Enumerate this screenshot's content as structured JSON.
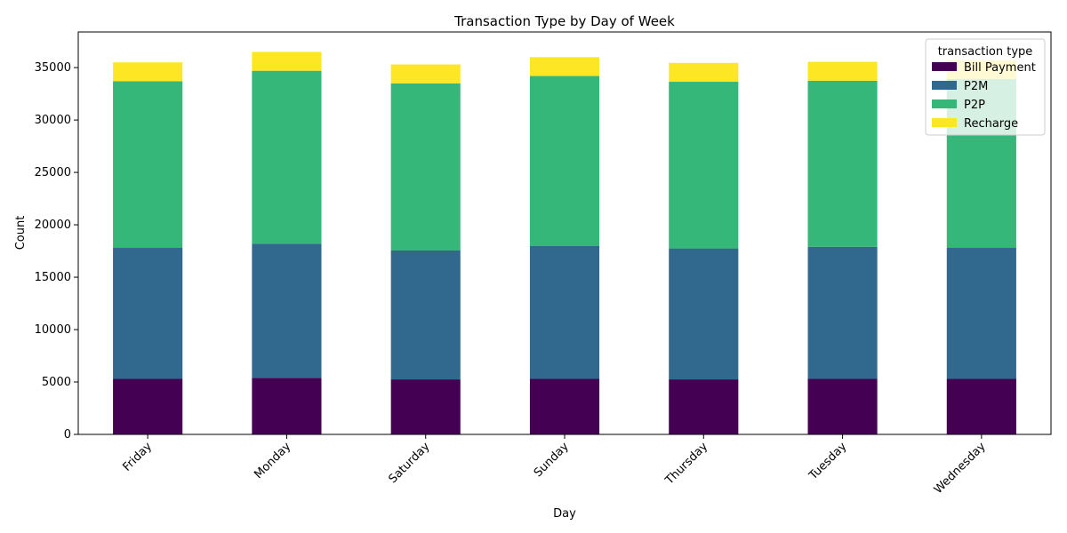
{
  "chart_data": {
    "type": "bar",
    "stacked": true,
    "title": "Transaction Type by Day of Week",
    "xlabel": "Day",
    "ylabel": "Count",
    "ylim": [
      0,
      38400
    ],
    "yticks": [
      0,
      5000,
      10000,
      15000,
      20000,
      25000,
      30000,
      35000
    ],
    "categories": [
      "Friday",
      "Monday",
      "Saturday",
      "Sunday",
      "Thursday",
      "Tuesday",
      "Wednesday"
    ],
    "series": [
      {
        "name": "Bill Payment",
        "color": "#440154",
        "values": [
          5300,
          5400,
          5250,
          5300,
          5250,
          5300,
          5300
        ]
      },
      {
        "name": "P2M",
        "color": "#31688e",
        "values": [
          12500,
          12800,
          12300,
          12700,
          12500,
          12600,
          12500
        ]
      },
      {
        "name": "P2P",
        "color": "#35b779",
        "values": [
          15900,
          16500,
          15950,
          16200,
          15900,
          15850,
          16100
        ]
      },
      {
        "name": "Recharge",
        "color": "#fde725",
        "values": [
          1800,
          1800,
          1800,
          1800,
          1800,
          1800,
          1800
        ]
      }
    ],
    "legend": {
      "title": "transaction type",
      "placement": "top-right"
    },
    "grid": false
  }
}
